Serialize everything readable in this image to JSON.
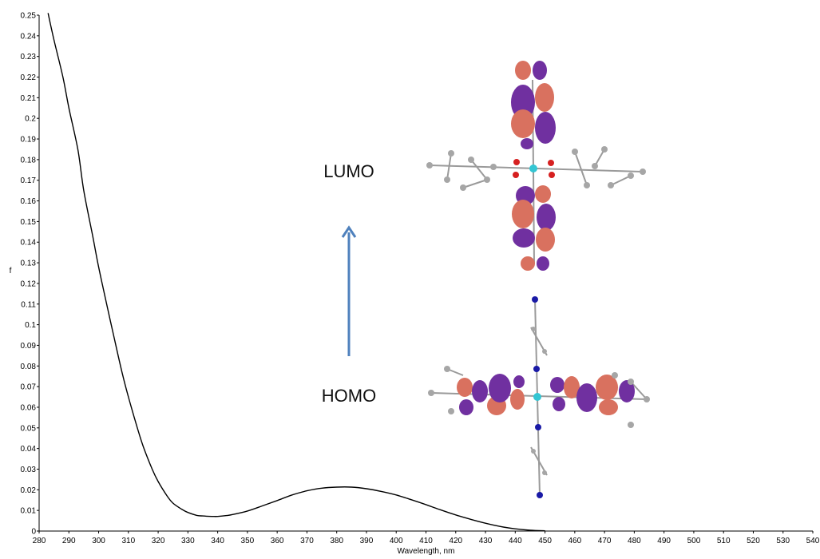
{
  "chart_data": {
    "type": "line",
    "xlabel": "Wavelength, nm",
    "ylabel": "f",
    "xlim": [
      280,
      540
    ],
    "ylim": [
      0,
      0.25
    ],
    "x_ticks": [
      280,
      290,
      300,
      310,
      320,
      330,
      340,
      350,
      360,
      370,
      380,
      390,
      400,
      410,
      420,
      430,
      440,
      450,
      460,
      470,
      480,
      490,
      500,
      510,
      520,
      530,
      540
    ],
    "y_ticks": [
      0,
      0.01,
      0.02,
      0.03,
      0.04,
      0.05,
      0.06,
      0.07,
      0.08,
      0.09,
      0.1,
      0.11,
      0.12,
      0.13,
      0.14,
      0.15,
      0.16,
      0.17,
      0.18,
      0.19,
      0.2,
      0.21,
      0.22,
      0.23,
      0.24,
      0.25
    ],
    "grid": false,
    "series": [
      {
        "color": "#000000",
        "x": [
          283,
          285,
          288,
          290,
          293,
          295,
          298,
          300,
          303,
          305,
          308,
          310,
          313,
          315,
          318,
          320,
          323,
          325,
          328,
          330,
          333,
          335,
          338,
          340,
          343,
          345,
          350,
          355,
          360,
          365,
          370,
          375,
          380,
          385,
          390,
          395,
          400,
          405,
          410,
          415,
          420,
          425,
          430,
          435,
          440,
          445,
          450
        ],
        "y": [
          0.251,
          0.238,
          0.22,
          0.205,
          0.185,
          0.165,
          0.143,
          0.128,
          0.108,
          0.095,
          0.076,
          0.065,
          0.05,
          0.041,
          0.03,
          0.024,
          0.017,
          0.0135,
          0.0105,
          0.009,
          0.0076,
          0.0073,
          0.0071,
          0.0071,
          0.0075,
          0.008,
          0.0097,
          0.0122,
          0.0148,
          0.0175,
          0.0195,
          0.0208,
          0.0213,
          0.0213,
          0.0205,
          0.0192,
          0.0175,
          0.0152,
          0.0128,
          0.0102,
          0.0078,
          0.0057,
          0.0038,
          0.0022,
          0.0011,
          0.0004,
          0.0001
        ]
      }
    ]
  },
  "annotations": {
    "lumo": "LUMO",
    "homo": "HOMO"
  },
  "colors": {
    "arrow": "#4f81bd",
    "orbital_positive": "#d9715f",
    "orbital_negative": "#7030a0",
    "atom_carbon": "#a6a6a6",
    "atom_oxygen": "#d62020",
    "atom_nitrogen": "#1a1aa6",
    "atom_metal": "#34c6d3"
  }
}
